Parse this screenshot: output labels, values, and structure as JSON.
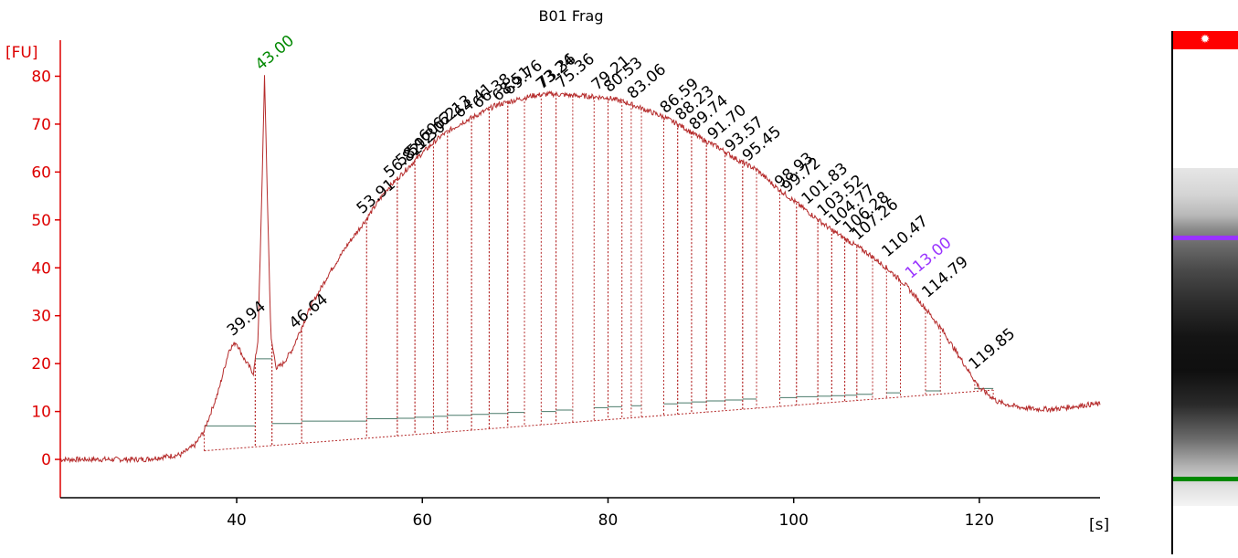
{
  "title": "B01 Frag",
  "y_unit_label": "[FU]",
  "x_unit_label": "[s]",
  "colors": {
    "axis": "#dd0000",
    "trace": "#b52b2b",
    "peak_label": "#000000",
    "lower_marker": "#008800",
    "upper_marker": "#9933ff",
    "baseline_segment": "#4a7a6a"
  },
  "gel": {
    "header_icon": "gear-icon",
    "header_color": "#ff0000",
    "upper_band_color": "#9933ff",
    "lower_band_color": "#008800"
  },
  "chart_data": {
    "type": "line",
    "title": "B01 Frag",
    "xlabel": "[s]",
    "ylabel": "[FU]",
    "xlim": [
      21,
      133
    ],
    "ylim": [
      -8,
      86
    ],
    "x_ticks": [
      40,
      60,
      80,
      100,
      120
    ],
    "y_ticks": [
      0,
      10,
      20,
      30,
      40,
      50,
      60,
      70,
      80
    ],
    "grid": false,
    "trace": {
      "x": [
        21,
        30,
        34,
        35.5,
        36.5,
        38,
        39.2,
        39.94,
        40.8,
        41.8,
        42.3,
        42.7,
        43,
        43.3,
        43.7,
        44.3,
        45,
        46,
        46.64,
        48,
        50,
        52,
        53.91,
        56,
        58,
        60,
        62,
        64,
        66,
        68,
        70,
        72,
        74,
        76,
        78,
        80,
        82,
        84,
        86,
        88,
        90,
        92,
        94,
        96,
        98,
        100,
        102,
        104,
        106,
        108,
        110,
        112,
        114,
        116,
        118,
        120,
        122,
        124,
        126,
        128,
        130,
        132,
        133
      ],
      "y": [
        0,
        0,
        1,
        3,
        6,
        14,
        23,
        24.5,
        21,
        18,
        25,
        55,
        80,
        55,
        25,
        19,
        20,
        23,
        26,
        32,
        39,
        45,
        50,
        56,
        60,
        64,
        67.5,
        70,
        72,
        74,
        75,
        76,
        76.3,
        76,
        75.8,
        75.5,
        74.5,
        73,
        71.5,
        69.5,
        67,
        65,
        62.5,
        60.5,
        57,
        54,
        51,
        48,
        45.5,
        43,
        40,
        36.5,
        32,
        27,
        21,
        15,
        12,
        11,
        10.5,
        10.5,
        11,
        11.5,
        11.5
      ]
    },
    "peaks": [
      {
        "label": "39.94",
        "x": 39.94,
        "y": 24.5,
        "color": "#000000"
      },
      {
        "label": "43.00",
        "x": 43.0,
        "y": 80,
        "color": "#008800"
      },
      {
        "label": "46.64",
        "x": 46.64,
        "y": 26,
        "color": "#000000"
      },
      {
        "label": "53.91",
        "x": 53.91,
        "y": 50,
        "color": "#000000"
      },
      {
        "label": "56.82",
        "x": 56.82,
        "y": 57.5,
        "color": "#000000"
      },
      {
        "label": "58.12",
        "x": 58.12,
        "y": 60,
        "color": "#000000"
      },
      {
        "label": "59.30",
        "x": 59.3,
        "y": 62,
        "color": "#000000"
      },
      {
        "label": "60.62",
        "x": 60.62,
        "y": 65,
        "color": "#000000"
      },
      {
        "label": "62.13",
        "x": 62.13,
        "y": 67.5,
        "color": "#000000"
      },
      {
        "label": "64.41",
        "x": 64.41,
        "y": 70,
        "color": "#000000"
      },
      {
        "label": "66.38",
        "x": 66.38,
        "y": 72,
        "color": "#000000"
      },
      {
        "label": "68.51",
        "x": 68.51,
        "y": 73.5,
        "color": "#000000"
      },
      {
        "label": "69.76",
        "x": 69.76,
        "y": 74.8,
        "color": "#000000"
      },
      {
        "label": "73.24",
        "x": 73.24,
        "y": 76,
        "color": "#000000"
      },
      {
        "label": "73.36",
        "x": 73.36,
        "y": 76.2,
        "color": "#000000"
      },
      {
        "label": "75.36",
        "x": 75.36,
        "y": 76.2,
        "color": "#000000"
      },
      {
        "label": "79.21",
        "x": 79.21,
        "y": 75.8,
        "color": "#000000"
      },
      {
        "label": "80.53",
        "x": 80.53,
        "y": 75.4,
        "color": "#000000"
      },
      {
        "label": "83.06",
        "x": 83.06,
        "y": 74,
        "color": "#000000"
      },
      {
        "label": "86.59",
        "x": 86.59,
        "y": 71,
        "color": "#000000"
      },
      {
        "label": "88.23",
        "x": 88.23,
        "y": 69.5,
        "color": "#000000"
      },
      {
        "label": "89.74",
        "x": 89.74,
        "y": 67.5,
        "color": "#000000"
      },
      {
        "label": "91.70",
        "x": 91.7,
        "y": 65.5,
        "color": "#000000"
      },
      {
        "label": "93.57",
        "x": 93.57,
        "y": 63,
        "color": "#000000"
      },
      {
        "label": "95.45",
        "x": 95.45,
        "y": 61,
        "color": "#000000"
      },
      {
        "label": "98.93",
        "x": 98.93,
        "y": 55.5,
        "color": "#000000"
      },
      {
        "label": "99.72",
        "x": 99.72,
        "y": 54.5,
        "color": "#000000"
      },
      {
        "label": "101.83",
        "x": 101.83,
        "y": 52,
        "color": "#000000"
      },
      {
        "label": "103.52",
        "x": 103.52,
        "y": 49.5,
        "color": "#000000"
      },
      {
        "label": "104.77",
        "x": 104.77,
        "y": 47.5,
        "color": "#000000"
      },
      {
        "label": "106.28",
        "x": 106.28,
        "y": 46,
        "color": "#000000"
      },
      {
        "label": "107.26",
        "x": 107.26,
        "y": 44.5,
        "color": "#000000"
      },
      {
        "label": "110.47",
        "x": 110.47,
        "y": 41,
        "color": "#000000"
      },
      {
        "label": "113.00",
        "x": 113.0,
        "y": 36.5,
        "color": "#9933ff"
      },
      {
        "label": "114.79",
        "x": 114.79,
        "y": 32.5,
        "color": "#000000"
      },
      {
        "label": "119.85",
        "x": 119.85,
        "y": 17.5,
        "color": "#000000"
      }
    ],
    "fragment_regions": [
      {
        "x0": 36.5,
        "x1": 42,
        "level": 7
      },
      {
        "x0": 42,
        "x1": 43.8,
        "level": 21
      },
      {
        "x0": 43.8,
        "x1": 47,
        "level": 7.5
      },
      {
        "x0": 47,
        "x1": 54,
        "level": 8
      },
      {
        "x0": 54,
        "x1": 57.3,
        "level": 8.5
      },
      {
        "x0": 57.3,
        "x1": 59.2,
        "level": 8.6
      },
      {
        "x0": 59.2,
        "x1": 61.2,
        "level": 8.8
      },
      {
        "x0": 61.2,
        "x1": 62.7,
        "level": 9
      },
      {
        "x0": 62.7,
        "x1": 65.3,
        "level": 9.2
      },
      {
        "x0": 65.3,
        "x1": 67.2,
        "level": 9.4
      },
      {
        "x0": 67.2,
        "x1": 69.2,
        "level": 9.6
      },
      {
        "x0": 69.2,
        "x1": 71,
        "level": 9.8
      },
      {
        "x0": 72.8,
        "x1": 74.4,
        "level": 10
      },
      {
        "x0": 74.4,
        "x1": 76.2,
        "level": 10.3
      },
      {
        "x0": 78.5,
        "x1": 80,
        "level": 10.8
      },
      {
        "x0": 80,
        "x1": 81.5,
        "level": 11
      },
      {
        "x0": 82.5,
        "x1": 83.6,
        "level": 11.2
      },
      {
        "x0": 86,
        "x1": 87.5,
        "level": 11.6
      },
      {
        "x0": 87.5,
        "x1": 89,
        "level": 11.8
      },
      {
        "x0": 89,
        "x1": 90.6,
        "level": 12
      },
      {
        "x0": 90.6,
        "x1": 92.6,
        "level": 12.2
      },
      {
        "x0": 92.6,
        "x1": 94.5,
        "level": 12.4
      },
      {
        "x0": 94.5,
        "x1": 96,
        "level": 12.6
      },
      {
        "x0": 98.5,
        "x1": 100.3,
        "level": 12.9
      },
      {
        "x0": 100.3,
        "x1": 102.6,
        "level": 13.1
      },
      {
        "x0": 102.6,
        "x1": 104.1,
        "level": 13.2
      },
      {
        "x0": 104.1,
        "x1": 105.5,
        "level": 13.3
      },
      {
        "x0": 105.5,
        "x1": 106.8,
        "level": 13.4
      },
      {
        "x0": 106.8,
        "x1": 108.5,
        "level": 13.6
      },
      {
        "x0": 110,
        "x1": 111.5,
        "level": 13.9
      },
      {
        "x0": 114.2,
        "x1": 115.8,
        "level": 14.3
      },
      {
        "x0": 119.5,
        "x1": 121.5,
        "level": 14.8
      }
    ]
  }
}
